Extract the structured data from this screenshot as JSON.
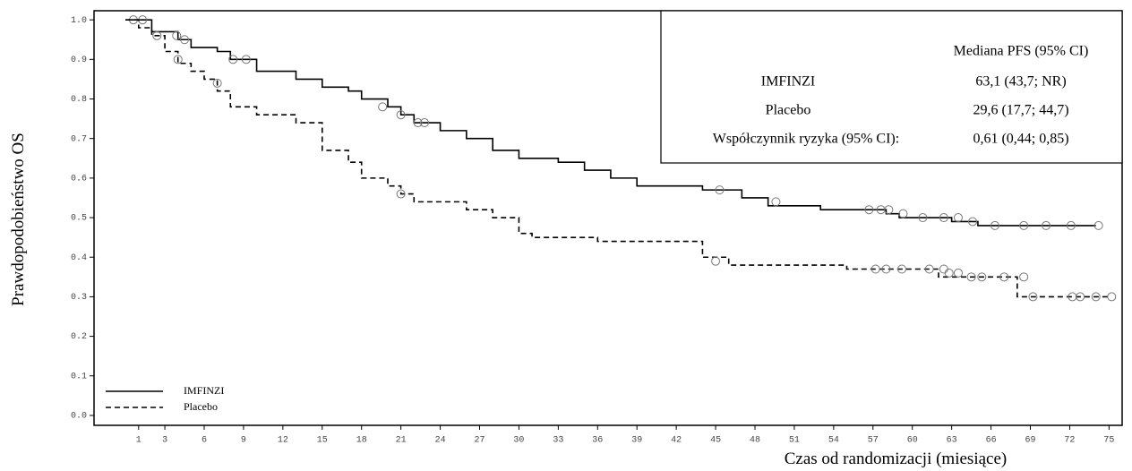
{
  "chart_data": {
    "type": "step",
    "y_label": "Prawdopodobieństwo OS",
    "x_label": "Czas od randomizacji (miesiące)",
    "xlim": [
      -2.4,
      76
    ],
    "ylim": [
      -0.025,
      1.023
    ],
    "xticks": [
      1,
      3,
      6,
      9,
      12,
      15,
      18,
      21,
      24,
      27,
      30,
      33,
      36,
      39,
      42,
      45,
      48,
      51,
      54,
      57,
      60,
      63,
      66,
      69,
      72,
      75
    ],
    "yticks": [
      {
        "value": 0,
        "label": "0.0"
      },
      0.1,
      0.2,
      0.3,
      0.4,
      0.5,
      0.6,
      0.7,
      0.8,
      0.9,
      {
        "value": 1,
        "label": "1.0"
      }
    ],
    "legend": "bottom-left",
    "series": [
      {
        "name": "IMFINZI",
        "color": "#000000",
        "dash": "solid",
        "x": [
          0,
          2,
          4,
          5,
          7,
          8,
          10,
          13,
          15,
          17,
          18,
          20,
          21,
          22,
          24,
          26,
          28,
          30,
          33,
          35,
          37,
          39,
          44,
          47,
          49,
          53,
          58,
          59,
          63,
          65,
          74
        ],
        "values": [
          1.0,
          0.97,
          0.95,
          0.93,
          0.92,
          0.9,
          0.87,
          0.85,
          0.83,
          0.82,
          0.8,
          0.78,
          0.76,
          0.74,
          0.72,
          0.7,
          0.67,
          0.65,
          0.64,
          0.62,
          0.6,
          0.58,
          0.57,
          0.55,
          0.53,
          0.52,
          0.51,
          0.5,
          0.49,
          0.48,
          0.48
        ],
        "censor_x": [
          0.6,
          1.3,
          3.9,
          4.5,
          8.2,
          9.2,
          19.6,
          21,
          22.3,
          22.8,
          45.3,
          49.6,
          56.7,
          57.6,
          58.2,
          59.3,
          60.8,
          62.4,
          63.5,
          64.6,
          66.3,
          68.5,
          70.2,
          72.1,
          74.2
        ],
        "censor_values": [
          1.0,
          1.0,
          0.96,
          0.95,
          0.9,
          0.9,
          0.78,
          0.76,
          0.74,
          0.74,
          0.57,
          0.54,
          0.52,
          0.52,
          0.52,
          0.51,
          0.5,
          0.5,
          0.5,
          0.49,
          0.48,
          0.48,
          0.48,
          0.48,
          0.48
        ]
      },
      {
        "name": "Placebo",
        "color": "#000000",
        "dash": "dashed",
        "x": [
          0,
          1,
          2,
          3,
          4,
          5,
          6,
          7,
          8,
          10,
          13,
          15,
          17,
          18,
          20,
          21,
          22,
          26,
          28,
          30,
          31,
          36,
          44,
          46,
          55,
          62,
          68,
          75
        ],
        "values": [
          1.0,
          0.98,
          0.96,
          0.92,
          0.89,
          0.87,
          0.85,
          0.82,
          0.78,
          0.76,
          0.74,
          0.67,
          0.64,
          0.6,
          0.58,
          0.56,
          0.54,
          0.52,
          0.5,
          0.46,
          0.45,
          0.44,
          0.4,
          0.38,
          0.37,
          0.35,
          0.3,
          0.3
        ],
        "censor_x": [
          2.4,
          4,
          7,
          21,
          45,
          57.2,
          58,
          59.2,
          61.3,
          62.4,
          62.8,
          63.5,
          64.5,
          65.3,
          67,
          68.5,
          69.2,
          72.2,
          72.8,
          74,
          75.2
        ],
        "censor_values": [
          0.96,
          0.9,
          0.84,
          0.56,
          0.39,
          0.37,
          0.37,
          0.37,
          0.37,
          0.37,
          0.36,
          0.36,
          0.35,
          0.35,
          0.35,
          0.35,
          0.3,
          0.3,
          0.3,
          0.3,
          0.3
        ]
      }
    ],
    "table": {
      "header": "Mediana PFS (95% CI)",
      "rows": [
        [
          "IMFINZI",
          "63,1 (43,7; NR)"
        ],
        [
          "Placebo",
          "29,6 (17,7; 44,7)"
        ],
        [
          "Współczynnik ryzyka (95% CI):",
          "0,61 (0,44; 0,85)"
        ]
      ]
    }
  }
}
